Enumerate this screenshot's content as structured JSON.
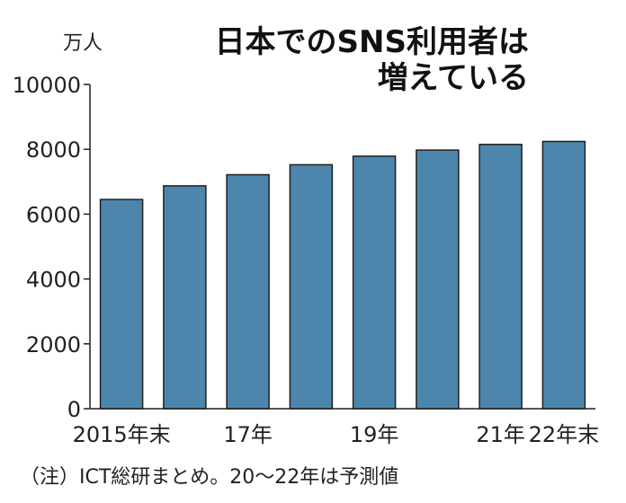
{
  "chart_data": {
    "type": "bar",
    "title_lines": [
      "日本でのSNS利用者は",
      "増えている"
    ],
    "unit": "万人",
    "categories": [
      "2015",
      "2016",
      "2017",
      "2018",
      "2019",
      "2020",
      "2021",
      "2022"
    ],
    "x_tick_labels": [
      "2015年末",
      "",
      "17年",
      "",
      "19年",
      "",
      "21年",
      "22年末"
    ],
    "values": [
      6451,
      6872,
      7216,
      7523,
      7786,
      7975,
      8149,
      8241
    ],
    "ylim": [
      0,
      10000
    ],
    "yticks": [
      0,
      2000,
      4000,
      6000,
      8000,
      10000
    ],
    "bar_color": "#4d86ad",
    "grid": false,
    "note": "（注）ICT総研まとめ。20～22年は予測値"
  }
}
